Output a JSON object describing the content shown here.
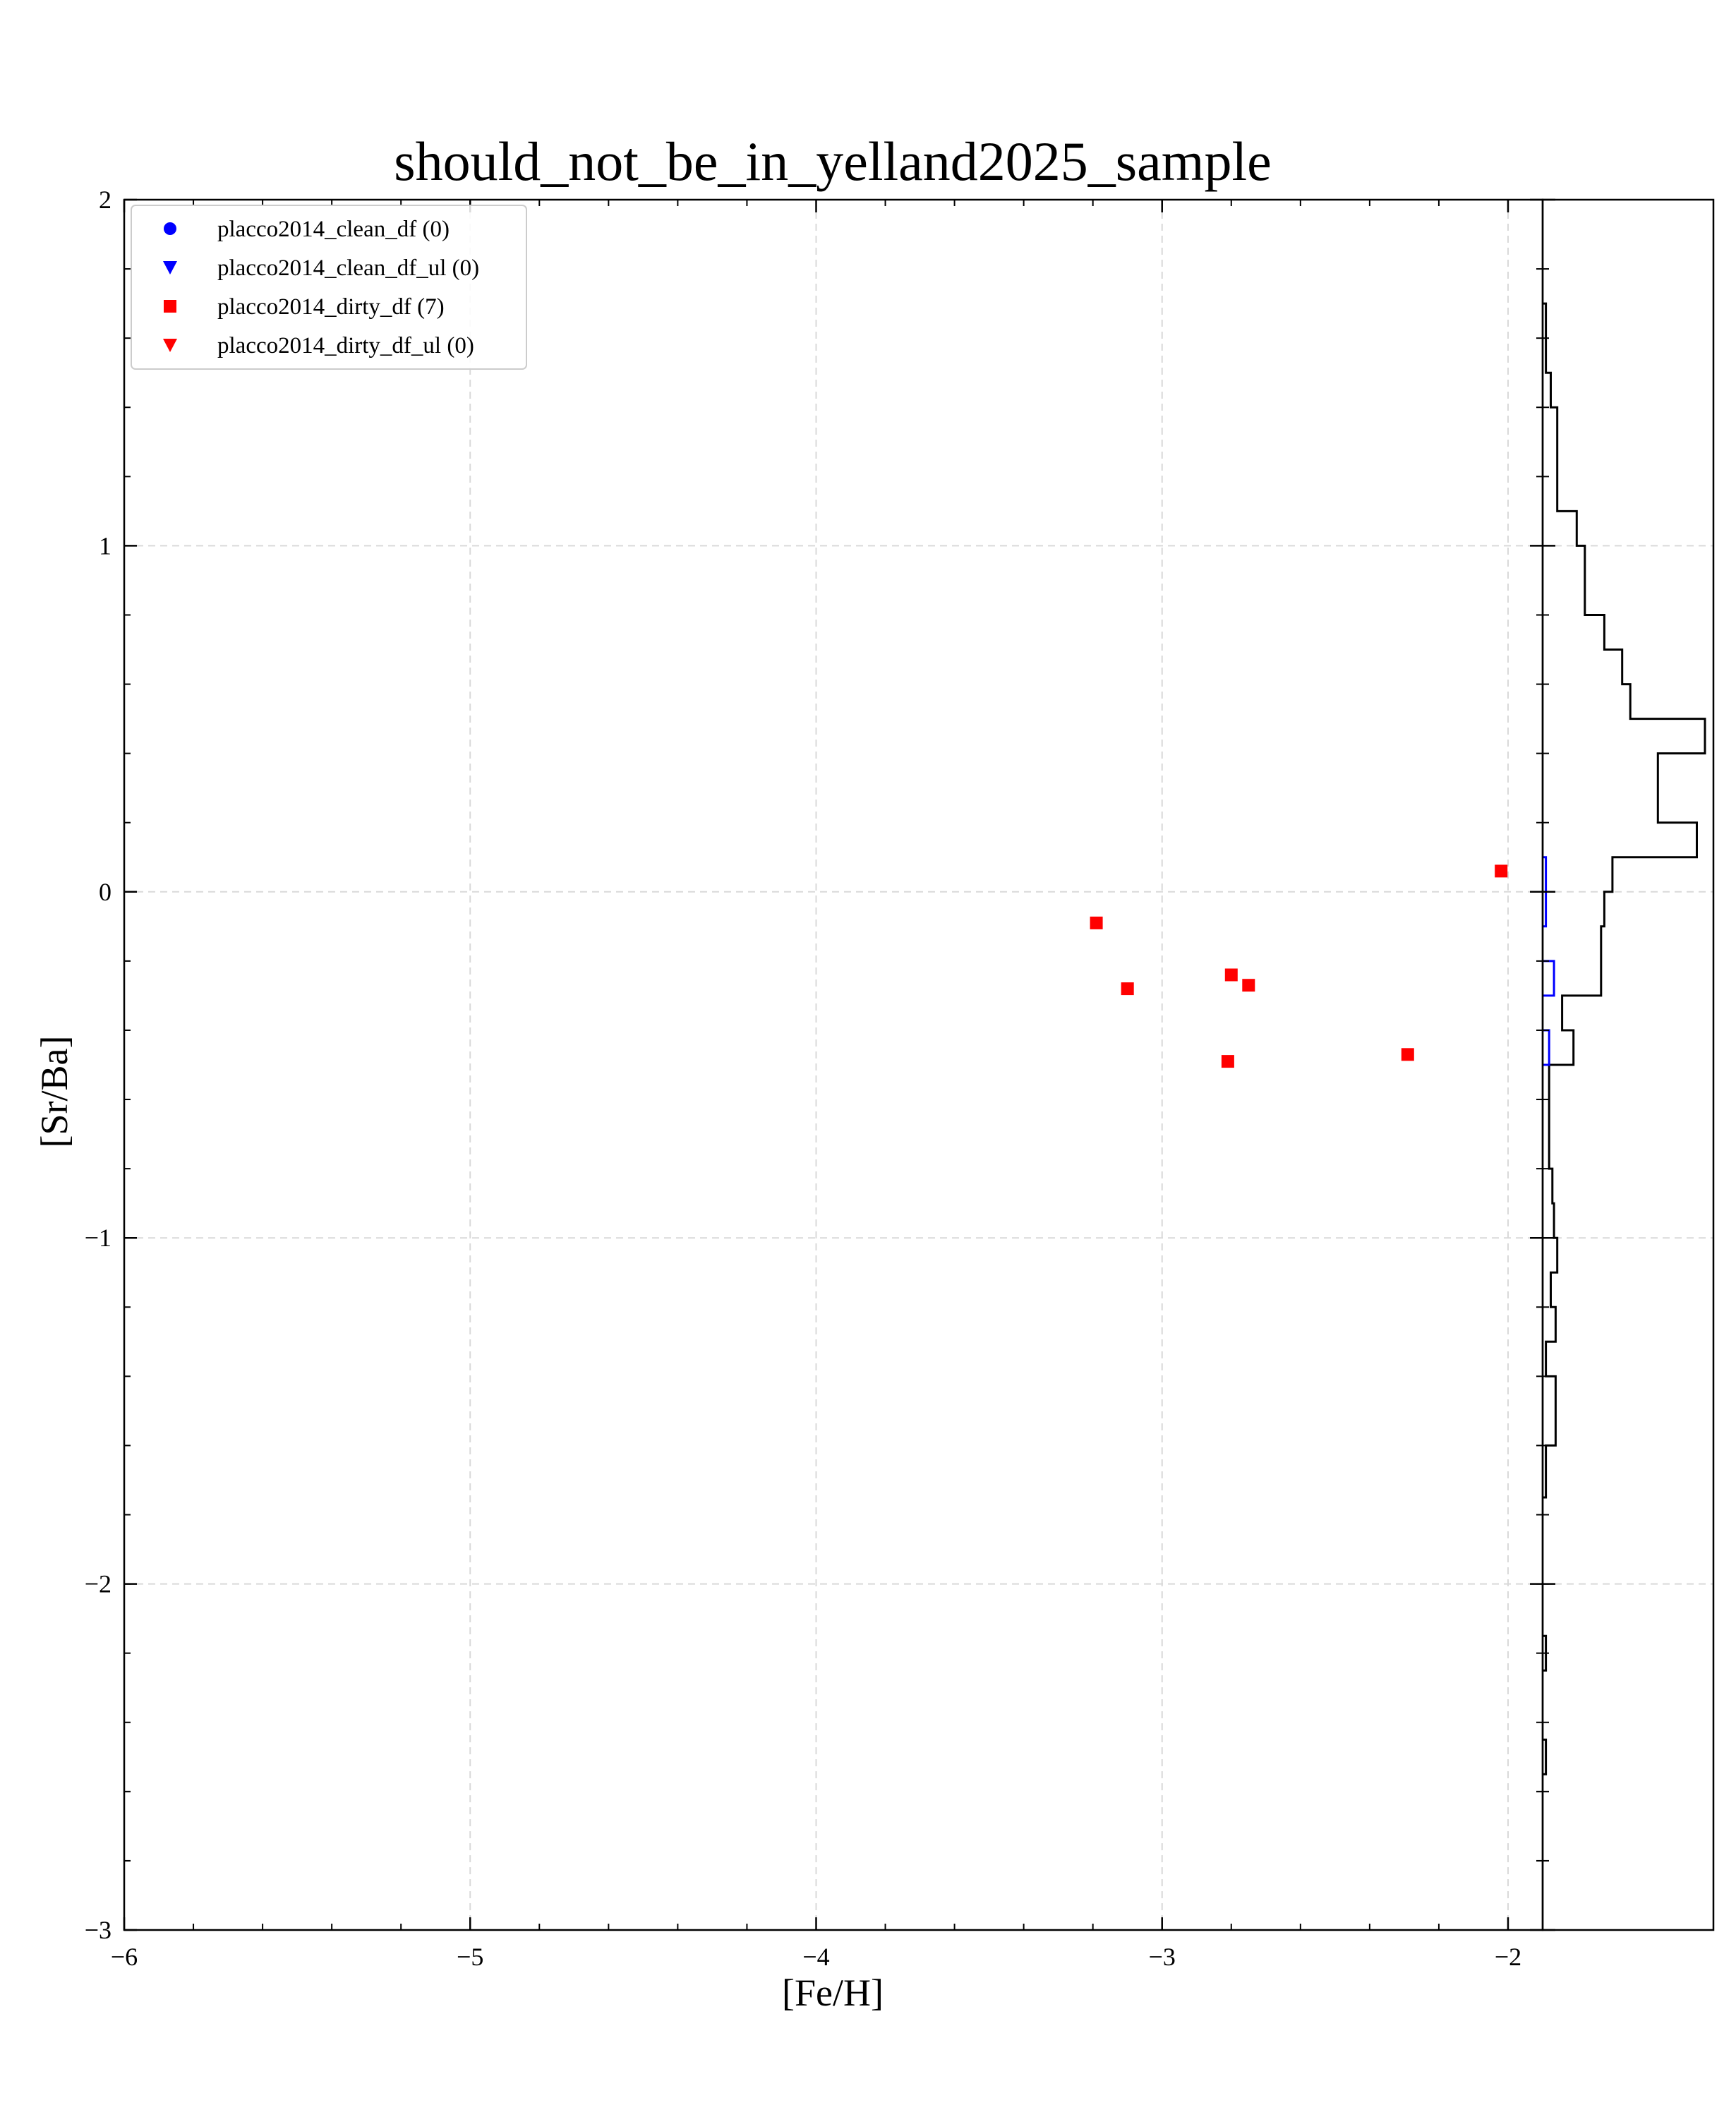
{
  "chart_data": {
    "type": "scatter",
    "title": "should_not_be_in_yelland2025_sample",
    "xlabel": "[Fe/H]",
    "ylabel": "[Sr/Ba]",
    "xlim": [
      -6,
      -1.9
    ],
    "ylim": [
      -3,
      2
    ],
    "xticks": [
      -6,
      -5,
      -4,
      -3,
      -2
    ],
    "yticks": [
      -3,
      -2,
      -1,
      0,
      1,
      2
    ],
    "xtick_labels": [
      "−6",
      "−5",
      "−4",
      "−3",
      "−2"
    ],
    "ytick_labels": [
      "−3",
      "−2",
      "−1",
      "0",
      "1",
      "2"
    ],
    "grid": true,
    "legend_position": "top-left",
    "legend": [
      {
        "label": "placco2014_clean_df (0)",
        "marker": "circle",
        "color": "#0000ff"
      },
      {
        "label": "placco2014_clean_df_ul (0)",
        "marker": "triangle-down",
        "color": "#0000ff"
      },
      {
        "label": "placco2014_dirty_df (7)",
        "marker": "square",
        "color": "#ff0000"
      },
      {
        "label": "placco2014_dirty_df_ul (0)",
        "marker": "triangle-down",
        "color": "#ff0000"
      }
    ],
    "series": [
      {
        "name": "placco2014_dirty_df (7)",
        "color": "#ff0000",
        "marker": "square",
        "points": [
          {
            "x": -3.19,
            "y": -0.09
          },
          {
            "x": -3.1,
            "y": -0.28
          },
          {
            "x": -2.8,
            "y": -0.24
          },
          {
            "x": -2.75,
            "y": -0.27
          },
          {
            "x": -2.81,
            "y": -0.49
          },
          {
            "x": -2.29,
            "y": -0.47
          },
          {
            "x": -2.02,
            "y": 0.06
          }
        ]
      }
    ],
    "marginal_histogram": {
      "orientation": "horizontal",
      "series": [
        {
          "color": "#000000",
          "bins": [
            {
              "lo": -2.55,
              "hi": -2.45,
              "count": 0.02
            },
            {
              "lo": -2.25,
              "hi": -2.15,
              "count": 0.02
            },
            {
              "lo": -1.75,
              "hi": -1.6,
              "count": 0.02
            },
            {
              "lo": -1.6,
              "hi": -1.4,
              "count": 0.08
            },
            {
              "lo": -1.4,
              "hi": -1.3,
              "count": 0.02
            },
            {
              "lo": -1.3,
              "hi": -1.2,
              "count": 0.08
            },
            {
              "lo": -1.2,
              "hi": -1.1,
              "count": 0.05
            },
            {
              "lo": -1.1,
              "hi": -1.0,
              "count": 0.09
            },
            {
              "lo": -1.0,
              "hi": -0.9,
              "count": 0.07
            },
            {
              "lo": -0.9,
              "hi": -0.8,
              "count": 0.06
            },
            {
              "lo": -0.8,
              "hi": -0.5,
              "count": 0.04
            },
            {
              "lo": -0.5,
              "hi": -0.4,
              "count": 0.19
            },
            {
              "lo": -0.4,
              "hi": -0.3,
              "count": 0.12
            },
            {
              "lo": -0.3,
              "hi": -0.1,
              "count": 0.36
            },
            {
              "lo": -0.1,
              "hi": 0.0,
              "count": 0.38
            },
            {
              "lo": 0.0,
              "hi": 0.1,
              "count": 0.43
            },
            {
              "lo": 0.1,
              "hi": 0.2,
              "count": 0.95
            },
            {
              "lo": 0.2,
              "hi": 0.4,
              "count": 0.71
            },
            {
              "lo": 0.4,
              "hi": 0.5,
              "count": 1.0
            },
            {
              "lo": 0.5,
              "hi": 0.6,
              "count": 0.54
            },
            {
              "lo": 0.6,
              "hi": 0.7,
              "count": 0.49
            },
            {
              "lo": 0.7,
              "hi": 0.8,
              "count": 0.38
            },
            {
              "lo": 0.8,
              "hi": 1.0,
              "count": 0.26
            },
            {
              "lo": 1.0,
              "hi": 1.1,
              "count": 0.21
            },
            {
              "lo": 1.1,
              "hi": 1.4,
              "count": 0.09
            },
            {
              "lo": 1.4,
              "hi": 1.5,
              "count": 0.05
            },
            {
              "lo": 1.5,
              "hi": 1.7,
              "count": 0.02
            }
          ]
        },
        {
          "color": "#0000ff",
          "bins": [
            {
              "lo": -0.5,
              "hi": -0.4,
              "count": 0.04
            },
            {
              "lo": -0.3,
              "hi": -0.2,
              "count": 0.07
            },
            {
              "lo": -0.1,
              "hi": 0.1,
              "count": 0.02
            }
          ]
        }
      ]
    }
  }
}
